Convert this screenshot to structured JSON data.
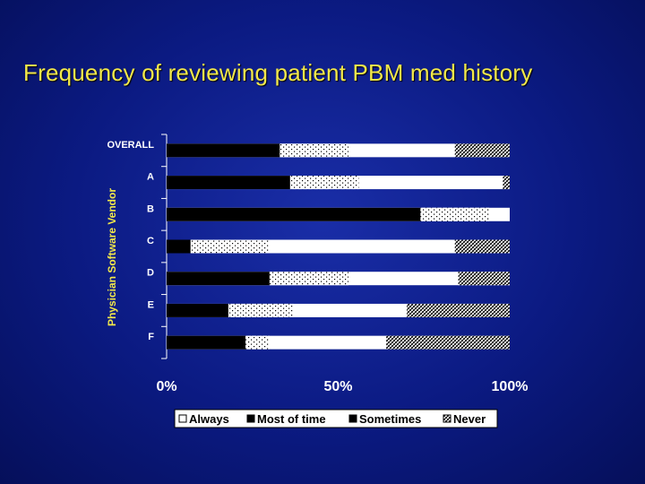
{
  "slide": {
    "title": "Frequency of reviewing patient PBM med history"
  },
  "chart_data": {
    "type": "bar",
    "orientation": "horizontal",
    "stacked": true,
    "title": "",
    "xlabel": "",
    "ylabel": "Physician Software Vendor",
    "categories": [
      "OVERALL",
      "A",
      "B",
      "C",
      "D",
      "E",
      "F"
    ],
    "xlim": [
      0,
      100
    ],
    "xticks": [
      "0%",
      "50%",
      "100%"
    ],
    "legend_position": "bottom",
    "series": [
      {
        "name": "Always",
        "pattern": "solid",
        "color": "#ffffff",
        "values": [
          0,
          0,
          0,
          0,
          0,
          0,
          0
        ]
      },
      {
        "name": "Most of time",
        "pattern": "solid",
        "color": "#000000",
        "values": [
          33,
          36,
          74,
          7,
          30,
          18,
          23
        ]
      },
      {
        "name": "Sometimes",
        "pattern": "dots",
        "color": "#ffffff",
        "values": [
          20,
          20,
          20,
          23,
          23,
          19,
          7
        ]
      },
      {
        "name": "Never",
        "pattern": "crosshatch",
        "color": "#ffffff",
        "values": [
          16,
          2,
          0,
          16,
          15,
          30,
          36
        ]
      }
    ],
    "remainder_series": {
      "name": "Sometimes",
      "pattern": "solid-white"
    }
  }
}
